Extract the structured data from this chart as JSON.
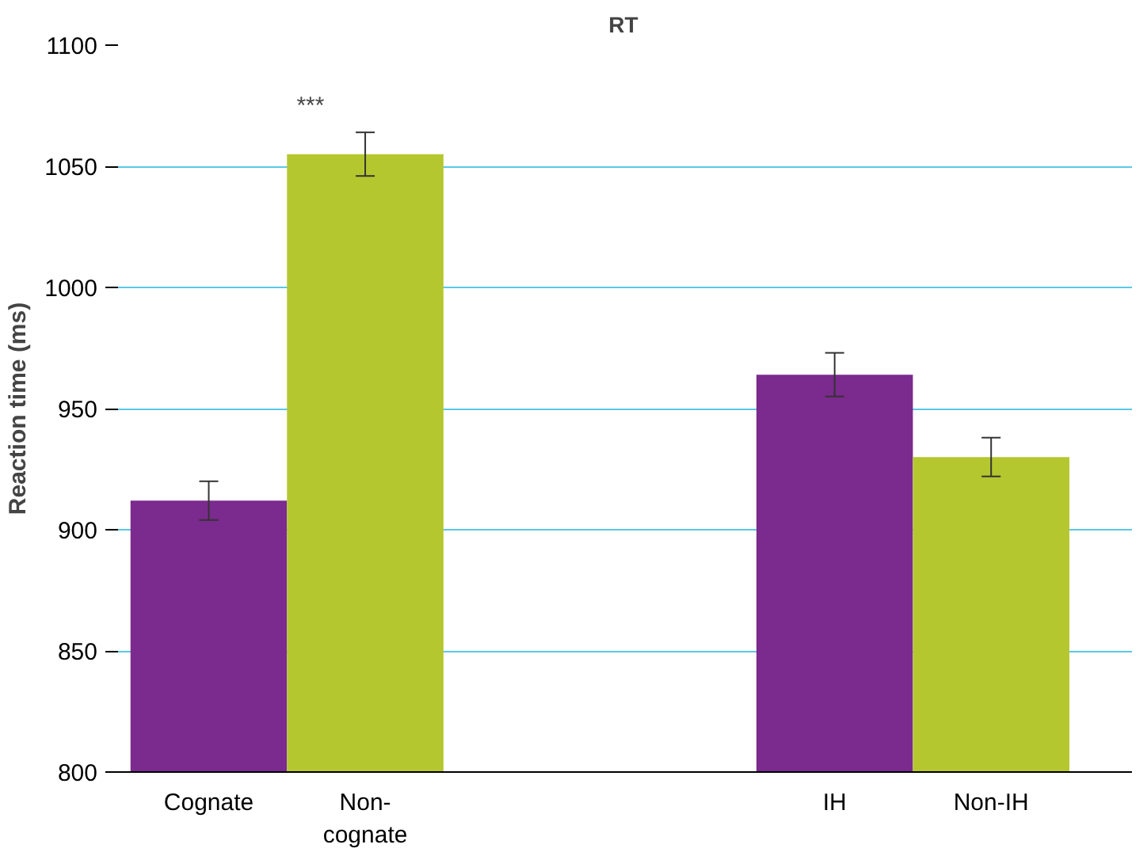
{
  "chart_data": {
    "type": "bar",
    "title": "RT",
    "ylabel": "Reaction time (ms)",
    "categories": [
      "Cognate",
      "Non-\ncognate",
      null,
      null,
      "IH",
      "Non-IH"
    ],
    "values": [
      912,
      1055,
      null,
      null,
      964,
      930
    ],
    "errors": [
      8,
      9,
      null,
      null,
      9,
      8
    ],
    "colors": [
      "#7b2a8e",
      "#b5c72f",
      null,
      null,
      "#7b2a8e",
      "#b5c72f"
    ],
    "ylim": [
      800,
      1100
    ],
    "yticks": [
      800,
      850,
      900,
      950,
      1000,
      1050,
      1100
    ],
    "grid": "y",
    "annotations": [
      "***"
    ]
  }
}
